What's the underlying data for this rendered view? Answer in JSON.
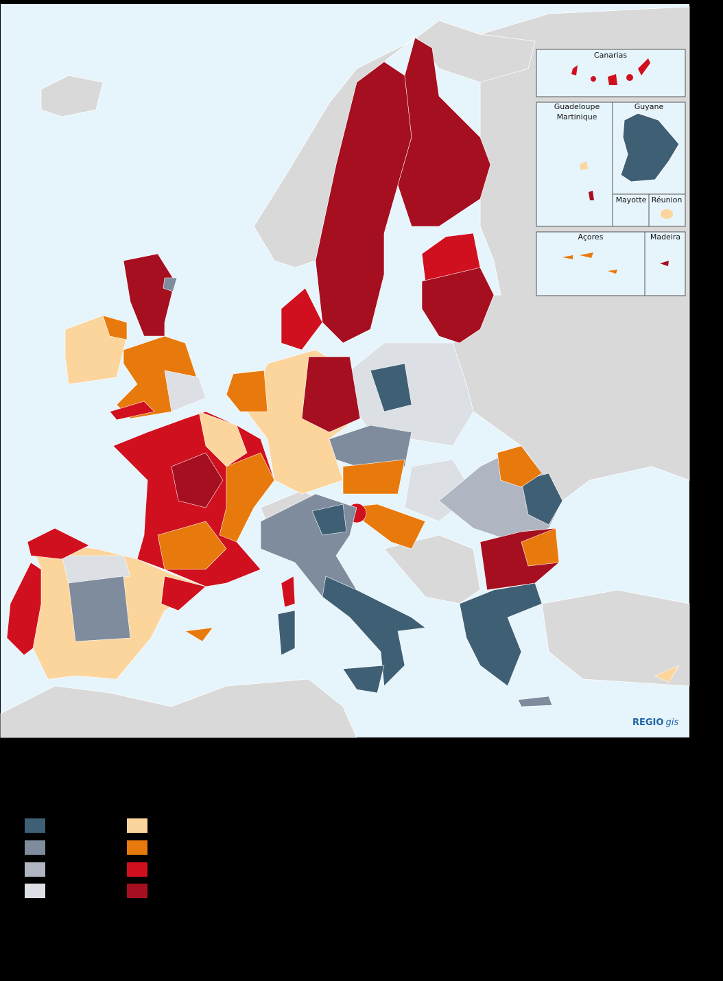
{
  "insets": {
    "canarias": "Canarias",
    "guadeloupe": "Guadeloupe",
    "martinique": "Martinique",
    "guyane": "Guyane",
    "mayotte": "Mayotte",
    "reunion": "Réunion",
    "acores": "Açores",
    "madeira": "Madeira"
  },
  "logo": {
    "brand": "REGIO",
    "suffix": "gis"
  }
}
